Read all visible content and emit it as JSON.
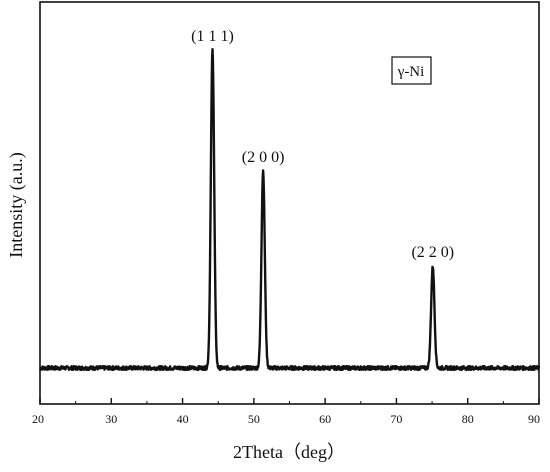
{
  "chart_data": {
    "type": "line",
    "title": "",
    "xlabel": "2Theta（deg）",
    "ylabel": "Intensity (a.u.)",
    "xlim": [
      20,
      90
    ],
    "ylim": [
      0,
      1.1
    ],
    "x_ticks": [
      20,
      30,
      40,
      50,
      60,
      70,
      80,
      90
    ],
    "y_ticks_shown": false,
    "grid": false,
    "legend": {
      "text": "γ-Ni",
      "placement": "top-right"
    },
    "series": [
      {
        "peaks": [
          {
            "x": 44.2,
            "y": 1.0,
            "label": "(1 1 1)"
          },
          {
            "x": 51.3,
            "y": 0.62,
            "label": "(2 0 0)"
          },
          {
            "x": 75.1,
            "y": 0.32,
            "label": "(2 2 0)"
          }
        ],
        "baseline": 0.0,
        "peak_fwhm_deg": 0.55
      }
    ]
  },
  "colors": {
    "line": "#111111",
    "axis": "#111111",
    "background": "#ffffff"
  }
}
